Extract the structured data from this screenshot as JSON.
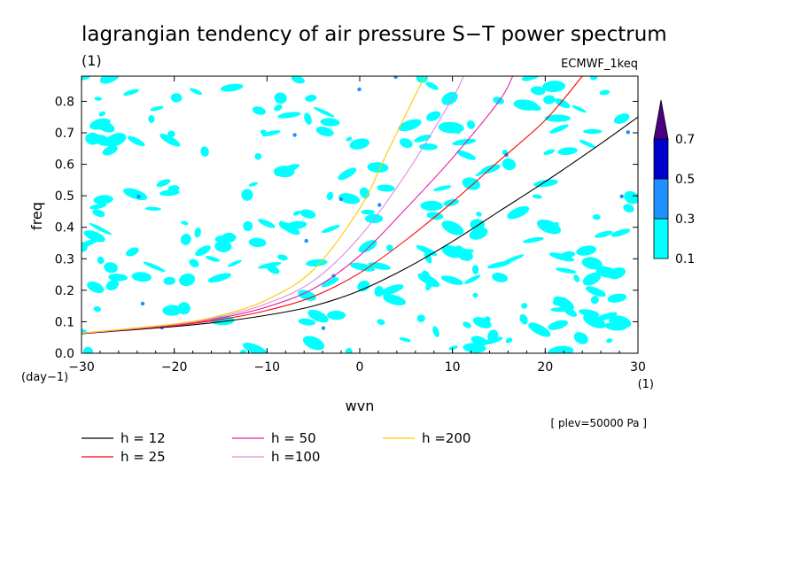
{
  "chart_data": {
    "type": "line",
    "title": "lagrangian tendency of air pressure S−T power spectrum",
    "unit_label": "(1)",
    "dataset": "ECMWF_1keq",
    "xlabel": "wvn",
    "x_unit": "(1)",
    "ylabel": "freq",
    "y_unit": "(day−1)",
    "level_note": "[ plev=50000 Pa ]",
    "xlim": [
      -30,
      30
    ],
    "ylim": [
      0,
      0.88
    ],
    "x_ticks": [
      -30,
      -20,
      -10,
      0,
      10,
      20,
      30
    ],
    "x_tick_labels": [
      "−30",
      "−20",
      "−10",
      "0",
      "10",
      "20",
      "30"
    ],
    "y_ticks": [
      0,
      0.1,
      0.2,
      0.3,
      0.4,
      0.5,
      0.6,
      0.7,
      0.8
    ],
    "y_tick_labels": [
      "0.0",
      "0.1",
      "0.2",
      "0.3",
      "0.4",
      "0.5",
      "0.6",
      "0.7",
      "0.8"
    ],
    "colorbar": {
      "levels": [
        "0.1",
        "0.3",
        "0.5",
        "0.7"
      ],
      "colors": [
        "#00ffff",
        "#1e90ff",
        "#0000cd",
        "#4b0082"
      ]
    },
    "series": [
      {
        "name": "h = 12",
        "color": "#000000",
        "x": [
          -30,
          -20,
          -15,
          -10,
          -5,
          0,
          5,
          10,
          15,
          20,
          25,
          30
        ],
        "y": [
          0.062,
          0.085,
          0.1,
          0.121,
          0.15,
          0.199,
          0.27,
          0.355,
          0.45,
          0.545,
          0.645,
          0.75
        ]
      },
      {
        "name": "h = 25",
        "color": "#ff0000",
        "x": [
          -30,
          -20,
          -15,
          -10,
          -5,
          0,
          5,
          10,
          15,
          20,
          24
        ],
        "y": [
          0.063,
          0.088,
          0.107,
          0.136,
          0.18,
          0.255,
          0.36,
          0.48,
          0.61,
          0.74,
          0.88
        ]
      },
      {
        "name": "h = 50",
        "color": "#e81ea8",
        "x": [
          -30,
          -20,
          -15,
          -10,
          -5,
          0,
          5,
          10,
          15,
          16.5
        ],
        "y": [
          0.063,
          0.09,
          0.112,
          0.147,
          0.205,
          0.31,
          0.46,
          0.62,
          0.8,
          0.88
        ]
      },
      {
        "name": "h =100",
        "color": "#dc8cdc",
        "x": [
          -30,
          -20,
          -15,
          -10,
          -5,
          0,
          5,
          10,
          11.2
        ],
        "y": [
          0.063,
          0.091,
          0.116,
          0.158,
          0.23,
          0.37,
          0.57,
          0.81,
          0.88
        ]
      },
      {
        "name": "h =200",
        "color": "#ffc800",
        "x": [
          -30,
          -20,
          -15,
          -10,
          -5,
          0,
          3,
          6,
          7
        ],
        "y": [
          0.064,
          0.093,
          0.12,
          0.17,
          0.265,
          0.46,
          0.64,
          0.82,
          0.88
        ]
      }
    ]
  }
}
